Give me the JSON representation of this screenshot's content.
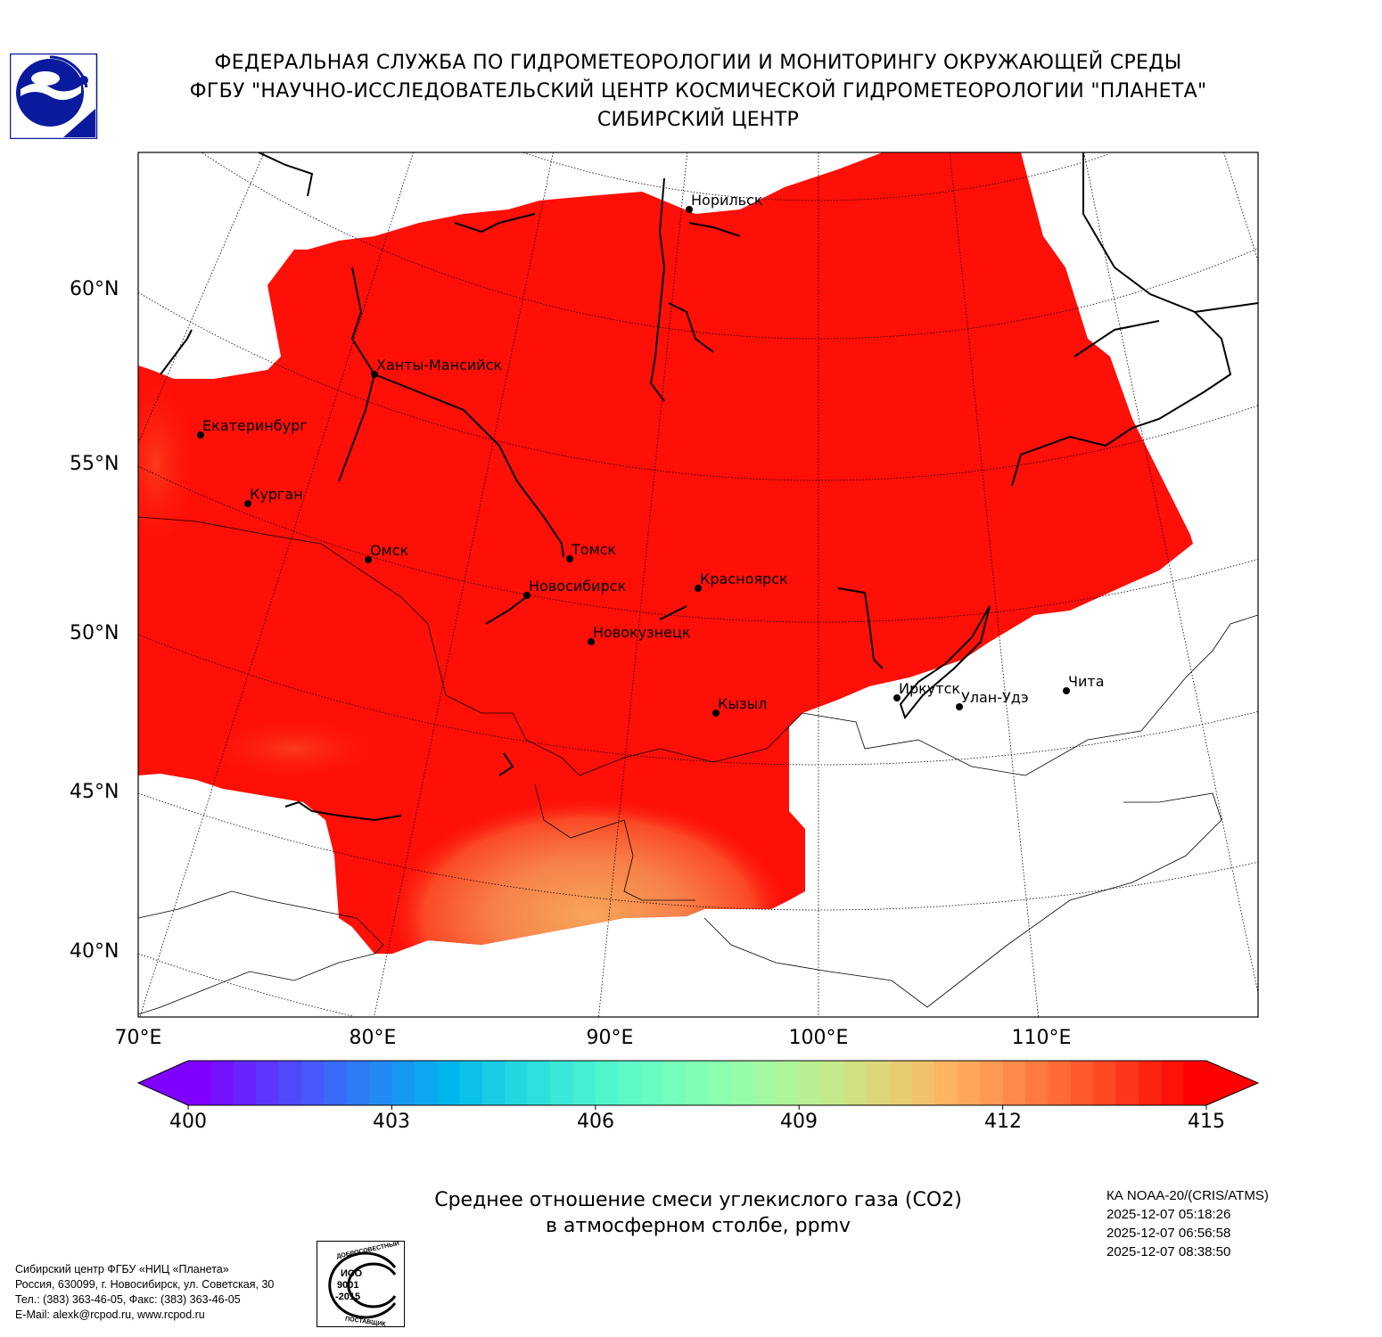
{
  "header": {
    "lines": [
      "ФЕДЕРАЛЬНАЯ СЛУЖБА ПО ГИДРОМЕТЕОРОЛОГИИ И МОНИТОРИНГУ ОКРУЖАЮЩЕЙ СРЕДЫ",
      "ФГБУ \"НАУЧНО-ИССЛЕДОВАТЕЛЬСКИЙ ЦЕНТР КОСМИЧЕСКОЙ ГИДРОМЕТЕОРОЛОГИИ \"ПЛАНЕТА\"",
      "СИБИРСКИЙ ЦЕНТР"
    ]
  },
  "map": {
    "lat_labels": [
      "60°N",
      "55°N",
      "50°N",
      "45°N",
      "40°N"
    ],
    "lon_labels": [
      "70°E",
      "80°E",
      "90°E",
      "100°E",
      "110°E"
    ],
    "field_color": "#fe0f08",
    "cities": [
      {
        "name": "Норильск"
      },
      {
        "name": "Ханты-Мансийск"
      },
      {
        "name": "Екатеринбург"
      },
      {
        "name": "Курган"
      },
      {
        "name": "Омск"
      },
      {
        "name": "Томск"
      },
      {
        "name": "Новосибирск"
      },
      {
        "name": "Красноярск"
      },
      {
        "name": "Новокузнецк"
      },
      {
        "name": "Иркутск"
      },
      {
        "name": "Улан-Удэ"
      },
      {
        "name": "Кызыл"
      },
      {
        "name": "Чита"
      }
    ]
  },
  "colorbar": {
    "min": 400,
    "max": 415,
    "colormap": "rainbow",
    "extend": "both",
    "ticks": [
      "400",
      "403",
      "406",
      "409",
      "412",
      "415"
    ]
  },
  "caption": {
    "line1": "Среднее отношение смеси углекислого газа (CO2)",
    "line2": "в атмосферном столбе, ppmv"
  },
  "satellite": {
    "instrument": "КА NOAA-20/(CRIS/ATMS)",
    "times": [
      "2025-12-07 05:18:26",
      "2025-12-07 06:56:58",
      "2025-12-07 08:38:50"
    ]
  },
  "footer": {
    "address": [
      "Сибирский центр ФГБУ «НИЦ «Планета»",
      "Россия, 630099, г. Новосибирск, ул. Советская, 30",
      "Тел.: (383) 363-46-05, Факс: (383) 363-46-05",
      "E-Mail: alexk@rcpod.ru, www.rcpod.ru"
    ],
    "iso_stamp": {
      "top": "ДОБРОСОВЕСТНЫЙ",
      "center": "ИСО 9001 -2015",
      "bottom": "ПОСТАВЩИК"
    }
  },
  "colors": {
    "logo_blue": "#0a1a9e",
    "field_red": "#fe0f08",
    "field_orange": "#f7a55a"
  }
}
